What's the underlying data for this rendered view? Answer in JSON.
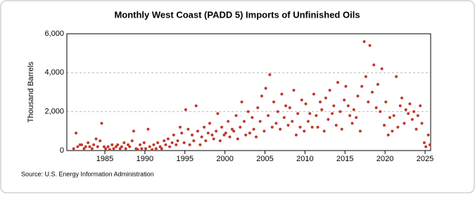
{
  "chart_data": {
    "type": "scatter",
    "title": "Monthly West Coast (PADD 5) Imports of Unfinished Oils",
    "y_label": "Thousand Barrels",
    "source": "Source: U.S. Energy Information Administration",
    "color": "#c0392b",
    "x": [
      1981.1,
      1981.4,
      1981.6,
      1981.9,
      1982.1,
      1982.4,
      1982.6,
      1982.9,
      1983.1,
      1983.4,
      1983.6,
      1983.9,
      1984.1,
      1984.4,
      1984.6,
      1984.9,
      1985.1,
      1985.4,
      1985.6,
      1985.9,
      1986.1,
      1986.4,
      1986.6,
      1986.9,
      1987.1,
      1987.4,
      1987.6,
      1987.9,
      1988.1,
      1988.4,
      1988.6,
      1988.9,
      1989.1,
      1989.4,
      1989.6,
      1989.9,
      1990.1,
      1990.4,
      1990.6,
      1990.9,
      1991.1,
      1991.4,
      1991.6,
      1991.9,
      1992.1,
      1992.4,
      1992.6,
      1992.9,
      1993.1,
      1993.4,
      1993.6,
      1993.9,
      1994.1,
      1994.4,
      1994.6,
      1994.9,
      1995.1,
      1995.4,
      1995.6,
      1995.9,
      1996.1,
      1996.4,
      1996.6,
      1996.9,
      1997.1,
      1997.4,
      1997.6,
      1997.9,
      1998.1,
      1998.4,
      1998.6,
      1998.9,
      1999.1,
      1999.4,
      1999.6,
      1999.9,
      2000.1,
      2000.4,
      2000.6,
      2000.9,
      2001.1,
      2001.4,
      2001.6,
      2001.9,
      2002.1,
      2002.4,
      2002.6,
      2002.9,
      2003.1,
      2003.4,
      2003.6,
      2003.9,
      2004.1,
      2004.4,
      2004.6,
      2004.9,
      2005.1,
      2005.4,
      2005.6,
      2005.9,
      2006.1,
      2006.4,
      2006.6,
      2006.9,
      2007.1,
      2007.4,
      2007.6,
      2007.9,
      2008.1,
      2008.4,
      2008.6,
      2008.9,
      2009.1,
      2009.4,
      2009.6,
      2009.9,
      2010.1,
      2010.4,
      2010.6,
      2010.9,
      2011.1,
      2011.4,
      2011.6,
      2011.9,
      2012.1,
      2012.4,
      2012.6,
      2012.9,
      2013.1,
      2013.4,
      2013.6,
      2013.9,
      2014.1,
      2014.4,
      2014.6,
      2014.9,
      2015.1,
      2015.4,
      2015.6,
      2015.9,
      2016.1,
      2016.4,
      2016.6,
      2016.9,
      2017.1,
      2017.4,
      2017.6,
      2017.9,
      2018.1,
      2018.4,
      2018.6,
      2018.9,
      2019.1,
      2019.4,
      2019.6,
      2019.9,
      2020.1,
      2020.4,
      2020.6,
      2020.9,
      2021.1,
      2021.4,
      2021.6,
      2021.9,
      2022.1,
      2022.4,
      2022.6,
      2022.9,
      2023.1,
      2023.4,
      2023.6,
      2023.9,
      2024.1,
      2024.4,
      2024.6,
      2024.9,
      2025.1,
      2025.4,
      2025.6
    ],
    "values": [
      100,
      900,
      200,
      300,
      300,
      100,
      200,
      400,
      200,
      100,
      300,
      600,
      200,
      500,
      1400,
      200,
      100,
      200,
      50,
      300,
      100,
      200,
      300,
      100,
      200,
      400,
      100,
      300,
      200,
      500,
      1000,
      100,
      50,
      300,
      100,
      400,
      100,
      1100,
      200,
      50,
      300,
      100,
      400,
      200,
      100,
      500,
      300,
      600,
      200,
      400,
      800,
      300,
      500,
      1200,
      900,
      400,
      2100,
      1100,
      300,
      800,
      500,
      2300,
      1000,
      300,
      700,
      1200,
      500,
      900,
      1400,
      800,
      600,
      1000,
      1900,
      500,
      1200,
      800,
      900,
      1500,
      700,
      1100,
      1000,
      1800,
      600,
      1200,
      2500,
      1500,
      800,
      2000,
      900,
      1700,
      1100,
      700,
      2200,
      1500,
      2800,
      1000,
      3200,
      1800,
      3900,
      1200,
      2500,
      1400,
      2000,
      1100,
      2900,
      1700,
      2300,
      1300,
      2200,
      1500,
      3100,
      800,
      1900,
      1200,
      2600,
      1000,
      2400,
      1500,
      1900,
      1200,
      2900,
      1800,
      1200,
      2500,
      2100,
      1000,
      2700,
      1600,
      3100,
      1900,
      2300,
      1300,
      3500,
      2000,
      1100,
      2600,
      3300,
      2300,
      1800,
      1400,
      2100,
      1700,
      2800,
      1000,
      3300,
      5600,
      3800,
      2500,
      5400,
      3000,
      4400,
      2200,
      3400,
      2000,
      4200,
      1300,
      2500,
      800,
      1700,
      1000,
      1800,
      3800,
      1200,
      2300,
      2700,
      1400,
      2100,
      1900,
      2400,
      1600,
      2000,
      1100,
      1800,
      2300,
      1400,
      400,
      200,
      800,
      300
    ],
    "xlim": [
      1980.25,
      2025.7
    ],
    "xticks": [
      1985,
      1990,
      1995,
      2000,
      2005,
      2010,
      2015,
      2020,
      2025
    ],
    "ylim": [
      0,
      6000
    ],
    "yticks": [
      0,
      {
        "value": 2000,
        "label": "2,000"
      },
      {
        "value": 4000,
        "label": "4,000"
      },
      {
        "value": 6000,
        "label": "6,000"
      }
    ],
    "grid": true
  }
}
